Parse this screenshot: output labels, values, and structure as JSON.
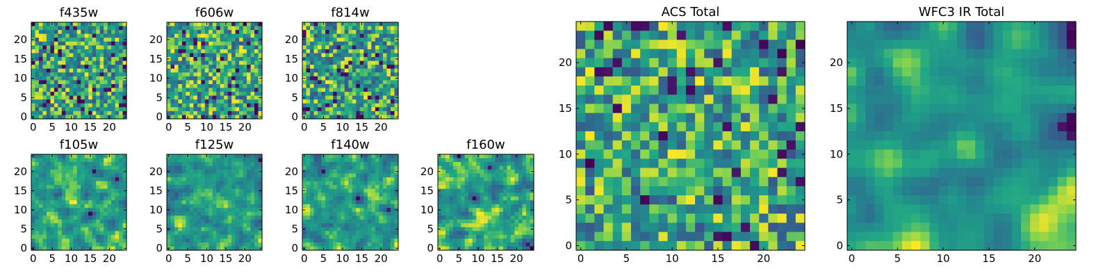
{
  "chart_data": [
    {
      "type": "heatmap",
      "title": "f435w",
      "colormap": "viridis",
      "grid": false,
      "xlim": [
        -0.5,
        24.5
      ],
      "ylim": [
        -0.5,
        24.5
      ],
      "xticks": [
        "0",
        "5",
        "10",
        "15",
        "20"
      ],
      "yticks": [
        "0",
        "5",
        "10",
        "15",
        "20"
      ],
      "pixel_count": 25,
      "texture_seed": 11,
      "smoothness": 0
    },
    {
      "type": "heatmap",
      "title": "f606w",
      "colormap": "viridis",
      "grid": false,
      "xlim": [
        -0.5,
        24.5
      ],
      "ylim": [
        -0.5,
        24.5
      ],
      "xticks": [
        "0",
        "5",
        "10",
        "15",
        "20"
      ],
      "yticks": [
        "0",
        "5",
        "10",
        "15",
        "20"
      ],
      "pixel_count": 25,
      "texture_seed": 23,
      "smoothness": 0
    },
    {
      "type": "heatmap",
      "title": "f814w",
      "colormap": "viridis",
      "grid": false,
      "xlim": [
        -0.5,
        24.5
      ],
      "ylim": [
        -0.5,
        24.5
      ],
      "xticks": [
        "0",
        "5",
        "10",
        "15",
        "20"
      ],
      "yticks": [
        "0",
        "5",
        "10",
        "15",
        "20"
      ],
      "pixel_count": 25,
      "texture_seed": 37,
      "smoothness": 0
    },
    {
      "type": "heatmap",
      "title": "f105w",
      "colormap": "viridis",
      "grid": false,
      "xlim": [
        -0.5,
        24.5
      ],
      "ylim": [
        -0.5,
        24.5
      ],
      "xticks": [
        "0",
        "5",
        "10",
        "15",
        "20"
      ],
      "yticks": [
        "0",
        "5",
        "10",
        "15",
        "20"
      ],
      "pixel_count": 25,
      "texture_seed": 41,
      "smoothness": 1
    },
    {
      "type": "heatmap",
      "title": "f125w",
      "colormap": "viridis",
      "grid": false,
      "xlim": [
        -0.5,
        24.5
      ],
      "ylim": [
        -0.5,
        24.5
      ],
      "xticks": [
        "0",
        "5",
        "10",
        "15",
        "20"
      ],
      "yticks": [
        "0",
        "5",
        "10",
        "15",
        "20"
      ],
      "pixel_count": 25,
      "texture_seed": 53,
      "smoothness": 1
    },
    {
      "type": "heatmap",
      "title": "f140w",
      "colormap": "viridis",
      "grid": false,
      "xlim": [
        -0.5,
        24.5
      ],
      "ylim": [
        -0.5,
        24.5
      ],
      "xticks": [
        "0",
        "5",
        "10",
        "15",
        "20"
      ],
      "yticks": [
        "0",
        "5",
        "10",
        "15",
        "20"
      ],
      "pixel_count": 25,
      "texture_seed": 67,
      "smoothness": 1
    },
    {
      "type": "heatmap",
      "title": "f160w",
      "colormap": "viridis",
      "grid": false,
      "xlim": [
        -0.5,
        24.5
      ],
      "ylim": [
        -0.5,
        24.5
      ],
      "xticks": [
        "0",
        "5",
        "10",
        "15",
        "20"
      ],
      "yticks": [
        "0",
        "5",
        "10",
        "15",
        "20"
      ],
      "pixel_count": 25,
      "texture_seed": 79,
      "smoothness": 1
    },
    {
      "type": "heatmap",
      "title": "ACS Total",
      "colormap": "viridis",
      "grid": false,
      "xlim": [
        -0.5,
        24.5
      ],
      "ylim": [
        -0.5,
        24.5
      ],
      "xticks": [
        "0",
        "5",
        "10",
        "15",
        "20"
      ],
      "yticks": [
        "0",
        "5",
        "10",
        "15",
        "20"
      ],
      "pixel_count": 25,
      "texture_seed": 97,
      "smoothness": 0
    },
    {
      "type": "heatmap",
      "title": "WFC3 IR Total",
      "colormap": "viridis",
      "grid": false,
      "xlim": [
        -0.5,
        24.5
      ],
      "ylim": [
        -0.5,
        24.5
      ],
      "xticks": [
        "0",
        "5",
        "10",
        "15",
        "20"
      ],
      "yticks": [
        "0",
        "5",
        "10",
        "15",
        "20"
      ],
      "pixel_count": 25,
      "texture_seed": 113,
      "smoothness": 2
    }
  ]
}
